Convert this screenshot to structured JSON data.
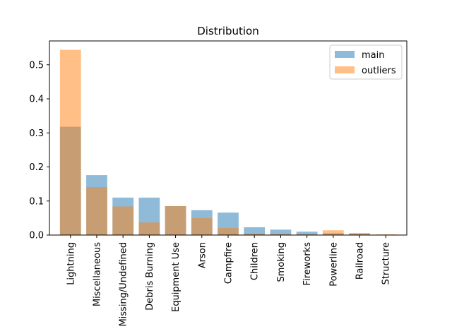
{
  "chart_data": {
    "type": "bar",
    "title": "Distribution",
    "xlabel": "",
    "ylabel": "",
    "ylim": [
      0,
      0.57
    ],
    "yticks": [
      0.0,
      0.1,
      0.2,
      0.3,
      0.4,
      0.5
    ],
    "ytick_labels": [
      "0.0",
      "0.1",
      "0.2",
      "0.3",
      "0.4",
      "0.5"
    ],
    "grid": false,
    "legend_position": "top-right",
    "categories": [
      "Lightning",
      "Miscellaneous",
      "Missing/Undefined",
      "Debris Burning",
      "Equipment Use",
      "Arson",
      "Campfire",
      "Children",
      "Smoking",
      "Fireworks",
      "Powerline",
      "Railroad",
      "Structure"
    ],
    "series": [
      {
        "name": "main",
        "color": "#1f77b4",
        "opacity": 0.5,
        "values": [
          0.318,
          0.176,
          0.11,
          0.11,
          0.085,
          0.073,
          0.066,
          0.023,
          0.016,
          0.01,
          0.005,
          0.004,
          0.001
        ]
      },
      {
        "name": "outliers",
        "color": "#ff7f0e",
        "opacity": 0.5,
        "values": [
          0.544,
          0.141,
          0.084,
          0.037,
          0.085,
          0.05,
          0.021,
          0.004,
          0.003,
          0.002,
          0.014,
          0.006,
          0.002
        ]
      }
    ]
  }
}
